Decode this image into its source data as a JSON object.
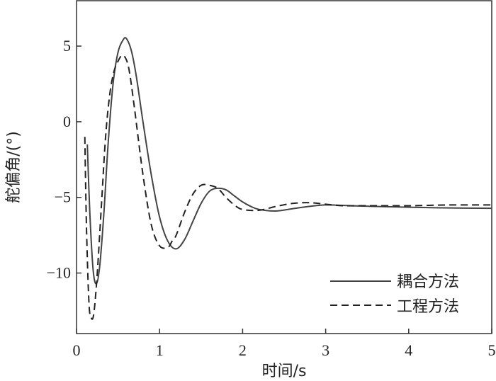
{
  "chart_data": {
    "type": "line",
    "title": "",
    "xlabel": "时间/s",
    "ylabel": "舵偏角/(°)",
    "xlim": [
      0,
      5
    ],
    "ylim": [
      -14,
      8
    ],
    "xticks": [
      0,
      1,
      2,
      3,
      4,
      5
    ],
    "yticks": [
      5,
      0,
      -5,
      -10
    ],
    "ytick_labels": [
      "5",
      "0",
      "−5",
      "−10"
    ],
    "grid": false,
    "legend_position": "bottom-right",
    "series": [
      {
        "name": "耦合方法",
        "style": "solid",
        "x": [
          0.13,
          0.16,
          0.2,
          0.24,
          0.28,
          0.33,
          0.38,
          0.44,
          0.5,
          0.56,
          0.6,
          0.66,
          0.72,
          0.8,
          0.9,
          1.0,
          1.1,
          1.2,
          1.3,
          1.4,
          1.5,
          1.6,
          1.7,
          1.8,
          1.9,
          2.0,
          2.1,
          2.2,
          2.4,
          2.6,
          2.8,
          3.0,
          3.3,
          3.6,
          4.0,
          4.5,
          5.0
        ],
        "y": [
          -1.5,
          -6.0,
          -9.8,
          -10.7,
          -9.5,
          -6.0,
          -1.5,
          2.5,
          4.6,
          5.4,
          5.5,
          4.7,
          3.0,
          0.0,
          -3.5,
          -6.3,
          -7.9,
          -8.4,
          -7.8,
          -6.6,
          -5.4,
          -4.6,
          -4.4,
          -4.5,
          -4.9,
          -5.3,
          -5.6,
          -5.8,
          -5.9,
          -5.75,
          -5.6,
          -5.5,
          -5.55,
          -5.6,
          -5.65,
          -5.7,
          -5.72
        ]
      },
      {
        "name": "工程方法",
        "style": "dashed",
        "x": [
          0.1,
          0.12,
          0.15,
          0.18,
          0.21,
          0.25,
          0.3,
          0.35,
          0.4,
          0.45,
          0.5,
          0.55,
          0.6,
          0.64,
          0.7,
          0.8,
          0.9,
          1.0,
          1.1,
          1.15,
          1.2,
          1.3,
          1.4,
          1.5,
          1.6,
          1.7,
          1.8,
          1.9,
          2.0,
          2.2,
          2.4,
          2.6,
          2.8,
          3.0,
          3.2,
          3.5,
          4.0,
          4.5,
          5.0
        ],
        "y": [
          -1.0,
          -7.0,
          -12.0,
          -13.0,
          -12.6,
          -10.0,
          -5.5,
          -1.0,
          1.8,
          3.3,
          4.0,
          4.4,
          4.1,
          3.2,
          0.8,
          -3.5,
          -6.8,
          -8.2,
          -8.3,
          -7.9,
          -7.5,
          -6.0,
          -4.8,
          -4.2,
          -4.2,
          -4.4,
          -5.0,
          -5.5,
          -5.8,
          -5.85,
          -5.6,
          -5.4,
          -5.35,
          -5.45,
          -5.55,
          -5.55,
          -5.55,
          -5.5,
          -5.5
        ]
      }
    ]
  }
}
